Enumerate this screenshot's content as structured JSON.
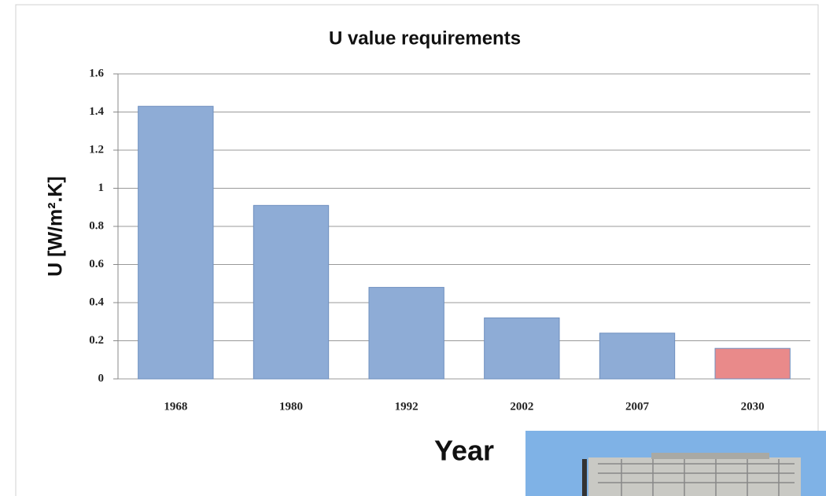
{
  "chart_data": {
    "type": "bar",
    "title": "U value requirements",
    "x_label": "Year",
    "y_label": "U [W/m².K]",
    "categories": [
      "1968",
      "1980",
      "1992",
      "2002",
      "2007",
      "2030"
    ],
    "values": [
      1.43,
      0.91,
      0.48,
      0.32,
      0.24,
      0.16
    ],
    "colors": [
      "#8eacd6",
      "#8eacd6",
      "#8eacd6",
      "#8eacd6",
      "#8eacd6",
      "#e98a8a"
    ],
    "ylim": [
      0,
      1.6
    ],
    "yticks": [
      0,
      0.2,
      0.4,
      0.6,
      0.8,
      1,
      1.2,
      1.4,
      1.6
    ],
    "grid": true
  }
}
